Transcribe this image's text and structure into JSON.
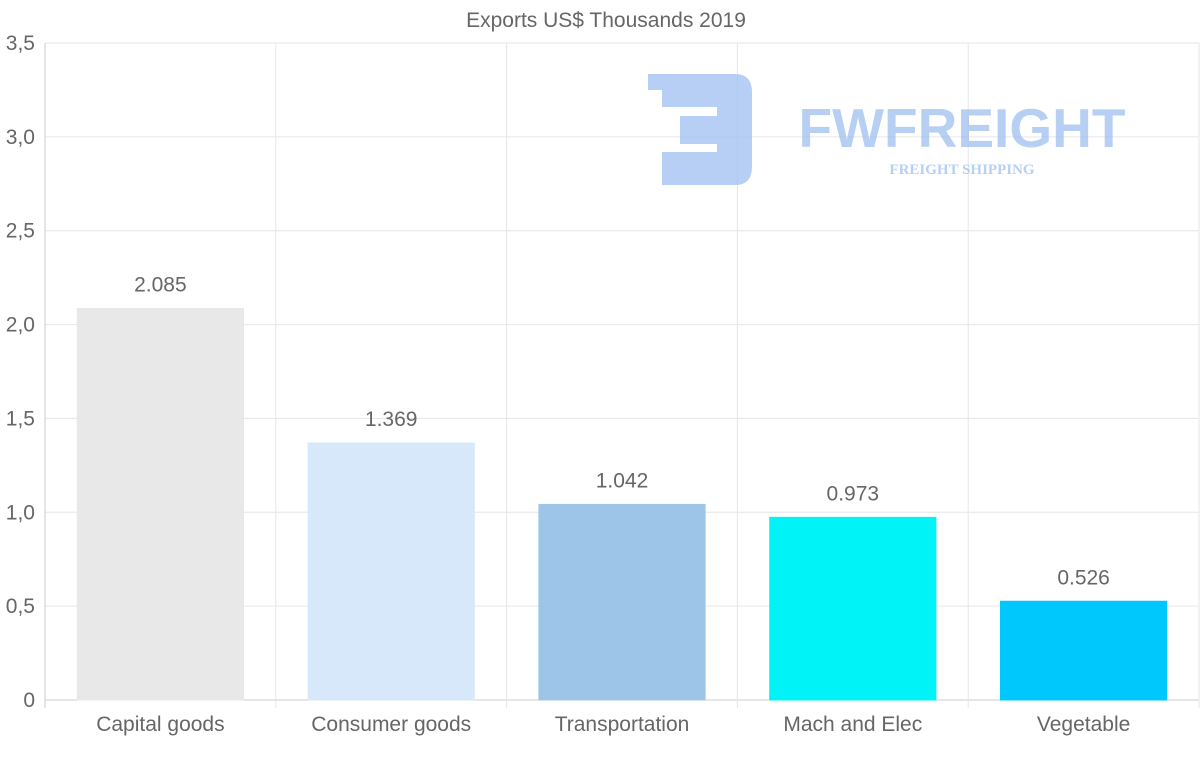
{
  "chart_data": {
    "type": "bar",
    "title": "Exports US$ Thousands 2019",
    "categories": [
      "Capital goods",
      "Consumer goods",
      "Transportation",
      "Mach and Elec",
      "Vegetable"
    ],
    "values": [
      2.085,
      1.369,
      1.042,
      0.973,
      0.526
    ],
    "value_labels": [
      "2.085",
      "1.369",
      "1.042",
      "0.973",
      "0.526"
    ],
    "bar_colors": [
      "#e8e8e8",
      "#d6e8fa",
      "#9dc5e7",
      "#00f4f7",
      "#00c8fd"
    ],
    "ylim": [
      0,
      3.5
    ],
    "yticks": [
      0,
      0.5,
      1.0,
      1.5,
      2.0,
      2.5,
      3.0,
      3.5
    ],
    "ytick_labels": [
      "0",
      "0,5",
      "1,0",
      "1,5",
      "2,0",
      "2,5",
      "3,0",
      "3,5"
    ],
    "xlabel": "",
    "ylabel": "",
    "grid": true,
    "legend": "none"
  },
  "watermark": {
    "brand": "FWFREIGHT",
    "tagline": "FREIGHT SHIPPING",
    "color": "#9fbff0"
  }
}
